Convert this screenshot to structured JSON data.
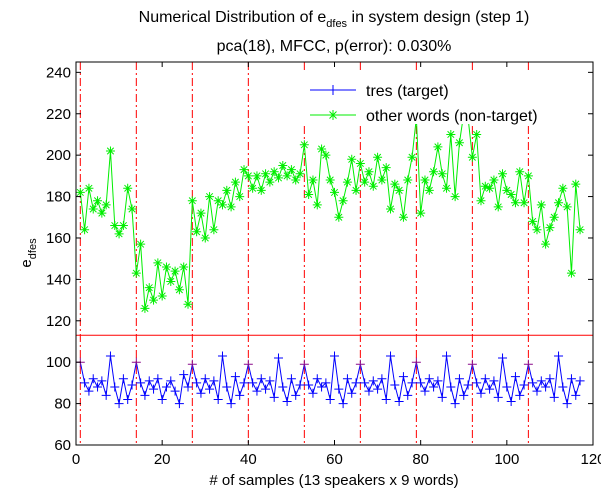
{
  "chart_data": {
    "type": "line",
    "title": "Numerical Distribution of e",
    "title_sub": "dfes",
    "title_tail": " in system design (step 1)",
    "subtitle": "pca(18), MFCC, p(error): 0.030%",
    "xlabel": "# of samples (13 speakers x 9 words)",
    "ylabel": "e",
    "ylabel_sub": "dfes",
    "xlim": [
      0,
      120
    ],
    "ylim": [
      60,
      245
    ],
    "xticks": [
      "0",
      "20",
      "40",
      "60",
      "80",
      "100",
      "120"
    ],
    "yticks": [
      "60",
      "80",
      "100",
      "120",
      "140",
      "160",
      "180",
      "200",
      "220",
      "240"
    ],
    "xtick_values": [
      0,
      20,
      40,
      60,
      80,
      100,
      120
    ],
    "ytick_values": [
      60,
      80,
      100,
      120,
      140,
      160,
      180,
      200,
      220,
      240
    ],
    "legend_position": "top-right",
    "threshold": 113,
    "speaker_boundaries": [
      1,
      14,
      27,
      40,
      53,
      66,
      79,
      92,
      105
    ],
    "series": [
      {
        "name": "tres (target)",
        "color": "#0000ff",
        "marker": "plus",
        "x": [
          1,
          2,
          3,
          4,
          5,
          6,
          7,
          8,
          9,
          10,
          11,
          12,
          13,
          14,
          15,
          16,
          17,
          18,
          19,
          20,
          21,
          22,
          23,
          24,
          25,
          26,
          27,
          28,
          29,
          30,
          31,
          32,
          33,
          34,
          35,
          36,
          37,
          38,
          39,
          40,
          41,
          42,
          43,
          44,
          45,
          46,
          47,
          48,
          49,
          50,
          51,
          52,
          53,
          54,
          55,
          56,
          57,
          58,
          59,
          60,
          61,
          62,
          63,
          64,
          65,
          66,
          67,
          68,
          69,
          70,
          71,
          72,
          73,
          74,
          75,
          76,
          77,
          78,
          79,
          80,
          81,
          82,
          83,
          84,
          85,
          86,
          87,
          88,
          89,
          90,
          91,
          92,
          93,
          94,
          95,
          96,
          97,
          98,
          99,
          100,
          101,
          102,
          103,
          104,
          105,
          106,
          107,
          108,
          109,
          110,
          111,
          112,
          113,
          114,
          115,
          116,
          117
        ],
        "values": [
          100,
          90,
          86,
          92,
          88,
          91,
          84,
          103,
          88,
          80,
          92,
          82,
          89,
          100,
          90,
          84,
          91,
          87,
          92,
          82,
          88,
          91,
          86,
          80,
          94,
          88,
          99,
          90,
          85,
          92,
          87,
          91,
          82,
          103,
          88,
          80,
          93,
          84,
          90,
          99,
          90,
          86,
          92,
          87,
          91,
          83,
          102,
          88,
          81,
          92,
          84,
          89,
          99,
          89,
          85,
          92,
          88,
          90,
          82,
          103,
          87,
          80,
          92,
          85,
          90,
          99,
          90,
          86,
          91,
          87,
          92,
          82,
          103,
          89,
          81,
          93,
          84,
          90,
          100,
          90,
          86,
          92,
          88,
          91,
          83,
          103,
          88,
          80,
          92,
          84,
          89,
          99,
          90,
          85,
          92,
          87,
          91,
          83,
          102,
          88,
          81,
          93,
          84,
          89,
          99,
          90,
          86,
          91,
          88,
          92,
          83,
          103,
          88,
          80,
          92,
          84,
          91
        ],
        "markers": [
          1,
          2,
          3,
          4,
          5,
          6,
          7,
          8,
          9,
          10,
          11,
          12,
          13,
          14,
          15,
          16,
          17,
          18,
          19,
          20,
          21,
          22,
          23,
          24,
          25,
          26,
          27,
          28,
          29,
          30,
          31,
          32,
          33,
          34,
          35,
          36,
          37,
          38,
          39,
          40,
          41,
          42,
          43,
          44,
          45,
          46,
          47,
          48,
          49,
          50,
          51,
          52,
          53,
          54,
          55,
          56,
          57,
          58,
          59,
          60,
          61,
          62,
          63,
          64,
          65,
          66,
          67,
          68,
          69,
          70,
          71,
          72,
          73,
          74,
          75,
          76,
          77,
          78,
          79,
          80,
          81,
          82,
          83,
          84,
          85,
          86,
          87,
          88,
          89,
          90,
          91,
          92,
          93,
          94,
          95,
          96,
          97,
          98,
          99,
          100,
          101,
          102,
          103,
          104,
          105,
          106,
          107,
          108,
          109,
          110,
          111,
          112,
          113,
          114,
          115,
          116,
          117
        ]
      },
      {
        "name": "other words (non-target)",
        "color": "#00ee00",
        "marker": "star",
        "x": [
          1,
          2,
          3,
          4,
          5,
          6,
          7,
          8,
          9,
          10,
          11,
          12,
          13,
          14,
          15,
          16,
          17,
          18,
          19,
          20,
          21,
          22,
          23,
          24,
          25,
          26,
          27,
          28,
          29,
          30,
          31,
          32,
          33,
          34,
          35,
          36,
          37,
          38,
          39,
          40,
          41,
          42,
          43,
          44,
          45,
          46,
          47,
          48,
          49,
          50,
          51,
          52,
          53,
          54,
          55,
          56,
          57,
          58,
          59,
          60,
          61,
          62,
          63,
          64,
          65,
          66,
          67,
          68,
          69,
          70,
          71,
          72,
          73,
          74,
          75,
          76,
          77,
          78,
          79,
          80,
          81,
          82,
          83,
          84,
          85,
          86,
          87,
          88,
          89,
          90,
          91,
          92,
          93,
          94,
          95,
          96,
          97,
          98,
          99,
          100,
          101,
          102,
          103,
          104,
          105,
          106,
          107,
          108,
          109,
          110,
          111,
          112,
          113,
          114,
          115,
          116,
          117
        ],
        "values": [
          182,
          164,
          184,
          174,
          178,
          172,
          176,
          202,
          166,
          162,
          166,
          184,
          174,
          143,
          157,
          126,
          136,
          130,
          148,
          132,
          146,
          139,
          144,
          135,
          146,
          128,
          178,
          163,
          172,
          160,
          180,
          164,
          178,
          176,
          183,
          175,
          187,
          180,
          193,
          190,
          184,
          190,
          183,
          191,
          187,
          192,
          189,
          195,
          190,
          193,
          188,
          191,
          205,
          181,
          188,
          176,
          203,
          200,
          188,
          182,
          170,
          178,
          187,
          198,
          183,
          196,
          187,
          192,
          185,
          199,
          188,
          194,
          174,
          186,
          183,
          170,
          188,
          199,
          218,
          172,
          188,
          183,
          192,
          204,
          191,
          184,
          210,
          180,
          206,
          220,
          218,
          199,
          210,
          178,
          185,
          184,
          188,
          175,
          191,
          183,
          181,
          177,
          192,
          177,
          190,
          168,
          164,
          176,
          157,
          165,
          170,
          177,
          184,
          175,
          143,
          186,
          164
        ]
      }
    ]
  }
}
